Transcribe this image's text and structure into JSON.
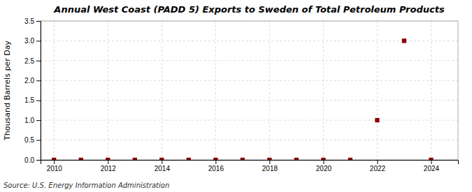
{
  "chart_data": {
    "type": "scatter",
    "title": "Annual West Coast (PADD 5) Exports to Sweden of Total Petroleum Products",
    "ylabel": "Thousand Barrels per Day",
    "annotation": "Source: U.S. Energy Information Administration",
    "x": [
      2010,
      2011,
      2012,
      2013,
      2014,
      2015,
      2016,
      2017,
      2018,
      2019,
      2020,
      2021,
      2022,
      2023,
      2024
    ],
    "values": [
      0.0,
      0.0,
      0.0,
      0.0,
      0.0,
      0.0,
      0.0,
      0.0,
      0.0,
      0.0,
      0.0,
      0.0,
      1.0,
      3.0,
      0.0
    ],
    "color": "#8b0000",
    "marker": "square",
    "xlim": [
      2009.5,
      2025.0
    ],
    "ylim": [
      0.0,
      3.5
    ],
    "xticks": [
      2010,
      2012,
      2014,
      2016,
      2018,
      2020,
      2022,
      2024
    ],
    "yticks": [
      {
        "value": 0.0,
        "label": "0.0"
      },
      0.5,
      {
        "value": 1.0,
        "label": "1.0"
      },
      1.5,
      {
        "value": 2.0,
        "label": "2.0"
      },
      2.5,
      {
        "value": 3.0,
        "label": "3.0"
      },
      3.5
    ],
    "grid": true
  }
}
